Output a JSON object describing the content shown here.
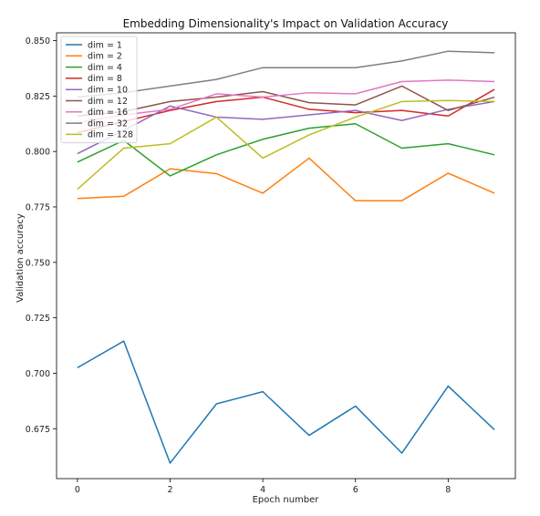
{
  "chart_data": {
    "type": "line",
    "title": "Embedding Dimensionality's Impact on Validation Accuracy",
    "xlabel": "Epoch number",
    "ylabel": "Validation accuracy",
    "x": [
      0,
      1,
      2,
      3,
      4,
      5,
      6,
      7,
      8,
      9
    ],
    "xlim": [
      -0.45,
      9.45
    ],
    "ylim": [
      0.6525,
      0.8535
    ],
    "xticks": [
      0,
      2,
      4,
      6,
      8
    ],
    "xtick_labels": [
      "0",
      "2",
      "4",
      "6",
      "8"
    ],
    "yticks": [
      0.675,
      0.7,
      0.725,
      0.75,
      0.775,
      0.8,
      0.825,
      0.85
    ],
    "ytick_labels": [
      "0.675",
      "0.700",
      "0.725",
      "0.750",
      "0.775",
      "0.800",
      "0.825",
      "0.850"
    ],
    "grid": false,
    "legend_position": "top-left",
    "series": [
      {
        "name": "dim = 1",
        "color": "#1f77b4",
        "values": [
          0.7025,
          0.7145,
          0.6595,
          0.6862,
          0.6917,
          0.672,
          0.6852,
          0.664,
          0.6942,
          0.6745
        ]
      },
      {
        "name": "dim = 2",
        "color": "#ff7f0e",
        "values": [
          0.7788,
          0.7798,
          0.7922,
          0.79,
          0.7812,
          0.797,
          0.7778,
          0.7778,
          0.7902,
          0.7812
        ]
      },
      {
        "name": "dim = 4",
        "color": "#2ca02c",
        "values": [
          0.7952,
          0.805,
          0.789,
          0.7985,
          0.8055,
          0.8105,
          0.8125,
          0.8015,
          0.8035,
          0.7985
        ]
      },
      {
        "name": "dim = 8",
        "color": "#d62728",
        "values": [
          0.8085,
          0.8135,
          0.8185,
          0.8225,
          0.8245,
          0.819,
          0.8175,
          0.8185,
          0.816,
          0.828
        ]
      },
      {
        "name": "dim = 10",
        "color": "#9467bd",
        "values": [
          0.799,
          0.8095,
          0.8205,
          0.8155,
          0.8145,
          0.8165,
          0.8185,
          0.814,
          0.819,
          0.8225
        ]
      },
      {
        "name": "dim = 12",
        "color": "#8c564b",
        "values": [
          0.816,
          0.818,
          0.8225,
          0.8245,
          0.827,
          0.822,
          0.821,
          0.8295,
          0.8185,
          0.8245
        ]
      },
      {
        "name": "dim = 16",
        "color": "#e377c2",
        "values": [
          0.813,
          0.8165,
          0.819,
          0.826,
          0.8245,
          0.8265,
          0.826,
          0.8315,
          0.8322,
          0.8315
        ]
      },
      {
        "name": "dim = 32",
        "color": "#7f7f7f",
        "values": [
          0.8245,
          0.8265,
          0.8295,
          0.8325,
          0.8378,
          0.8378,
          0.8378,
          0.8408,
          0.8452,
          0.8445
        ]
      },
      {
        "name": "dim = 128",
        "color": "#bcbd22",
        "values": [
          0.783,
          0.8015,
          0.8035,
          0.8155,
          0.797,
          0.8075,
          0.8155,
          0.8225,
          0.823,
          0.8225
        ]
      }
    ]
  }
}
